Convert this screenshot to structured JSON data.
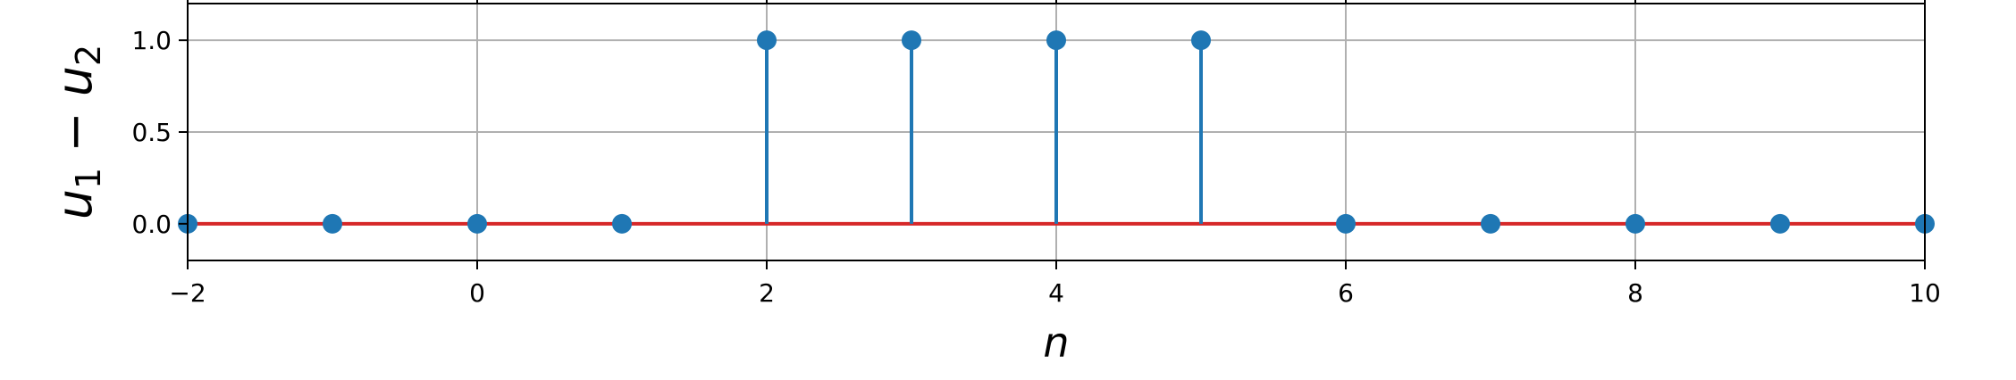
{
  "chart_data": {
    "type": "stem",
    "title": "",
    "xlabel": "n",
    "ylabel_base": "u",
    "ylabel_sub1": "1",
    "ylabel_op": " − ",
    "ylabel_sub2": "2",
    "xlim": [
      -2,
      10
    ],
    "ylim": [
      -0.2,
      1.2
    ],
    "grid": true,
    "x_ticks": [
      -2,
      0,
      2,
      4,
      6,
      8,
      10
    ],
    "x_tick_labels": [
      "−2",
      "0",
      "2",
      "4",
      "6",
      "8",
      "10"
    ],
    "y_ticks": [
      0.0,
      0.5,
      1.0
    ],
    "y_tick_labels": [
      "0.0",
      "0.5",
      "1.0"
    ],
    "series": [
      {
        "x": [
          -2,
          -1,
          0,
          1,
          2,
          3,
          4,
          5,
          6,
          7,
          8,
          9,
          10
        ],
        "y": [
          0,
          0,
          0,
          0,
          1,
          1,
          1,
          1,
          0,
          0,
          0,
          0,
          0
        ]
      }
    ],
    "colors": {
      "stem": "#1f77b4",
      "baseline": "#d62728",
      "grid": "#b0b0b0",
      "axes": "#000000"
    }
  }
}
